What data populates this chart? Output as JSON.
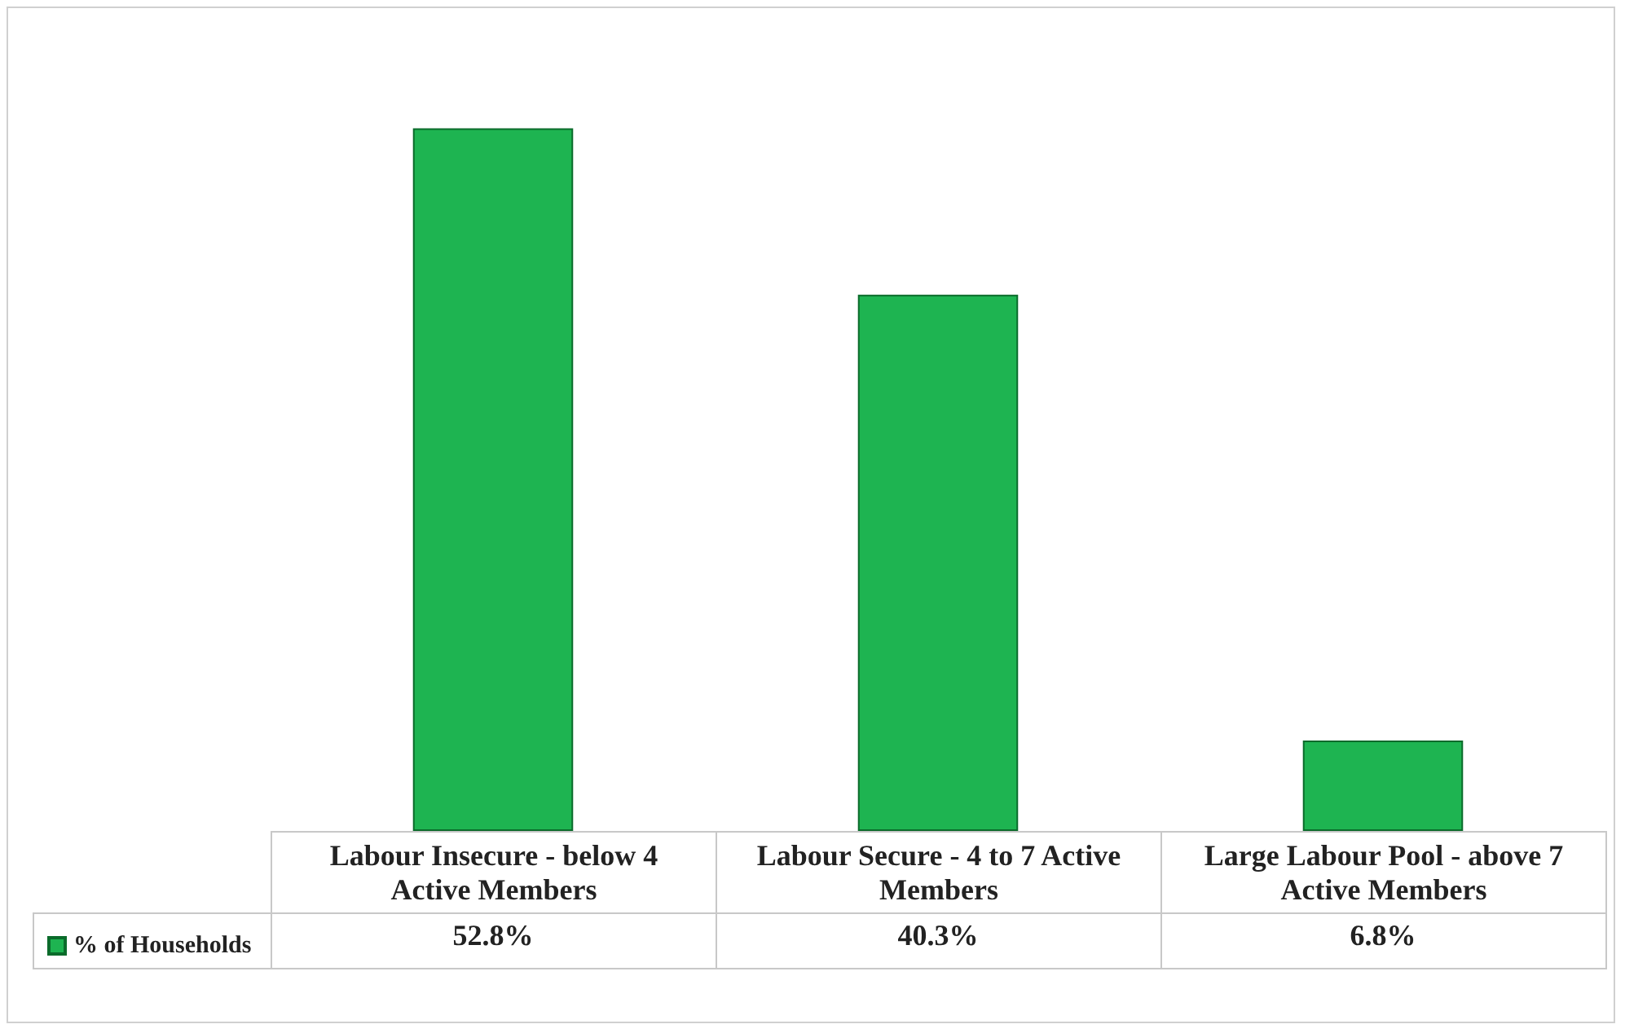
{
  "chart_data": {
    "type": "bar",
    "categories": [
      "Labour Insecure - below 4 Active Members",
      "Labour Secure - 4 to 7 Active Members",
      "Large Labour Pool - above 7 Active Members"
    ],
    "series": [
      {
        "name": "% of Households",
        "color": "#1eb451",
        "values": [
          52.8,
          40.3,
          6.8
        ],
        "value_labels": [
          "52.8%",
          "40.3%",
          "6.8%"
        ]
      }
    ],
    "legend": "bottom left"
  }
}
